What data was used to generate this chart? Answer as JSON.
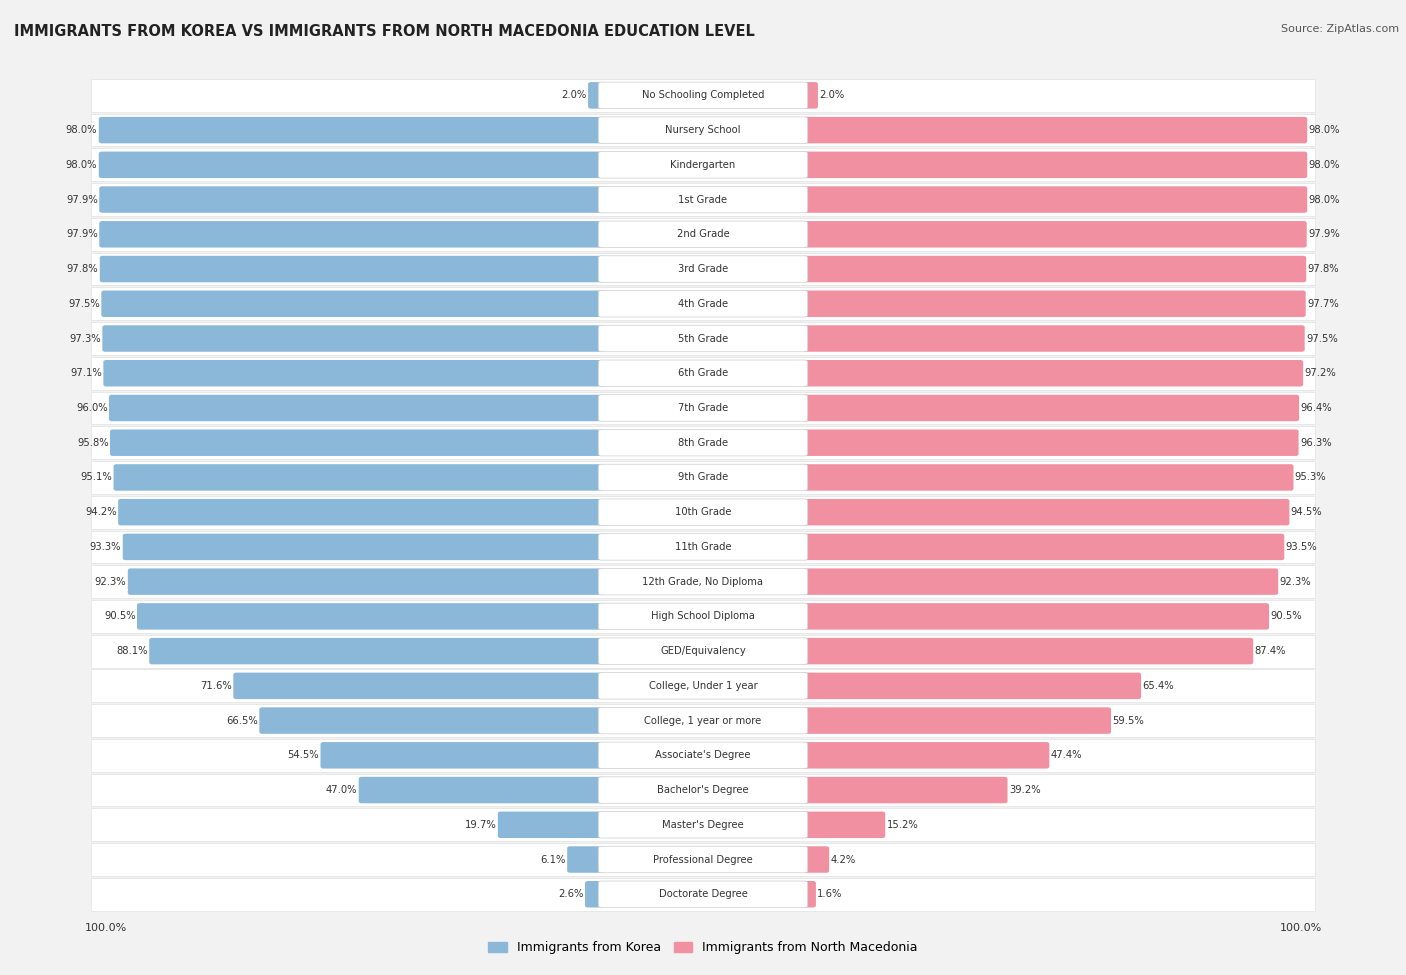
{
  "title": "IMMIGRANTS FROM KOREA VS IMMIGRANTS FROM NORTH MACEDONIA EDUCATION LEVEL",
  "source": "Source: ZipAtlas.com",
  "categories": [
    "No Schooling Completed",
    "Nursery School",
    "Kindergarten",
    "1st Grade",
    "2nd Grade",
    "3rd Grade",
    "4th Grade",
    "5th Grade",
    "6th Grade",
    "7th Grade",
    "8th Grade",
    "9th Grade",
    "10th Grade",
    "11th Grade",
    "12th Grade, No Diploma",
    "High School Diploma",
    "GED/Equivalency",
    "College, Under 1 year",
    "College, 1 year or more",
    "Associate's Degree",
    "Bachelor's Degree",
    "Master's Degree",
    "Professional Degree",
    "Doctorate Degree"
  ],
  "korea_values": [
    2.0,
    98.0,
    98.0,
    97.9,
    97.9,
    97.8,
    97.5,
    97.3,
    97.1,
    96.0,
    95.8,
    95.1,
    94.2,
    93.3,
    92.3,
    90.5,
    88.1,
    71.6,
    66.5,
    54.5,
    47.0,
    19.7,
    6.1,
    2.6
  ],
  "macedonia_values": [
    2.0,
    98.0,
    98.0,
    98.0,
    97.9,
    97.8,
    97.7,
    97.5,
    97.2,
    96.4,
    96.3,
    95.3,
    94.5,
    93.5,
    92.3,
    90.5,
    87.4,
    65.4,
    59.5,
    47.4,
    39.2,
    15.2,
    4.2,
    1.6
  ],
  "korea_color": "#8BB8D8",
  "macedonia_color": "#F090A0",
  "row_bg_color": "#FFFFFF",
  "bg_color": "#F2F2F2",
  "legend_korea": "Immigrants from Korea",
  "legend_macedonia": "Immigrants from North Macedonia"
}
